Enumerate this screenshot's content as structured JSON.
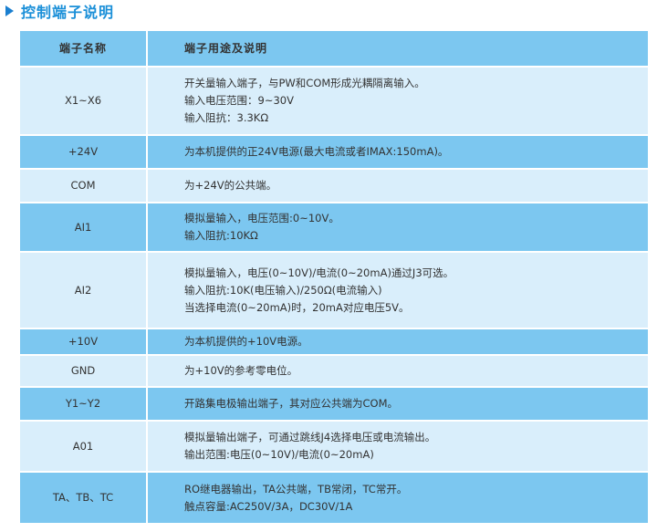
{
  "title": "控制端子说明",
  "header": {
    "col1": "端子名称",
    "col2": "端子用途及说明"
  },
  "rows": [
    {
      "name": "X1~X6",
      "lines": [
        "开关量输入端子，与PW和COM形成光耦隔离输入。",
        "输入电压范围：9~30V",
        "输入阻抗：3.3KΩ"
      ]
    },
    {
      "name": "+24V",
      "lines": [
        "为本机提供的正24V电源(最大电流或者IMAX:150mA)。"
      ]
    },
    {
      "name": "COM",
      "lines": [
        "为+24V的公共端。"
      ]
    },
    {
      "name": "AI1",
      "lines": [
        "模拟量输入，电压范围:0~10V。",
        "输入阻抗:10KΩ"
      ]
    },
    {
      "name": "AI2",
      "lines": [
        "模拟量输入，电压(0~10V)/电流(0~20mA)通过J3可选。",
        "输入阻抗:10K(电压输入)/250Ω(电流输入)",
        "当选择电流(0~20mA)时，20mA对应电压5V。"
      ]
    },
    {
      "name": "+10V",
      "lines": [
        "为本机提供的+10V电源。"
      ]
    },
    {
      "name": "GND",
      "lines": [
        "为+10V的参考零电位。"
      ]
    },
    {
      "name": "Y1~Y2",
      "lines": [
        "开路集电极输出端子，其对应公共端为COM。"
      ]
    },
    {
      "name": "A01",
      "lines": [
        "模拟量输出端子，可通过跳线J4选择电压或电流输出。",
        "输出范围:电压(0~10V)/电流(0~20mA)"
      ]
    },
    {
      "name": "TA、TB、TC",
      "lines": [
        "RO继电器输出，TA公共端，TB常闭，TC常开。",
        "触点容量:AC250V/3A，DC30V/1A"
      ]
    }
  ]
}
